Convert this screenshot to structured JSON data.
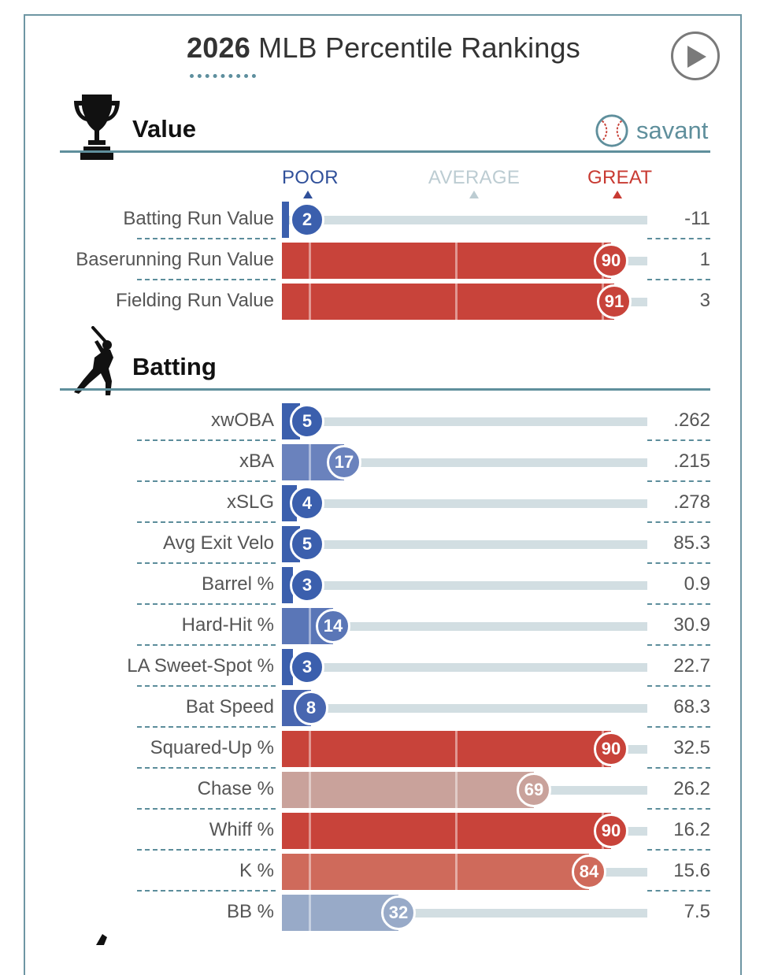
{
  "header": {
    "title_year": "2026",
    "title_rest": "MLB Percentile Rankings",
    "play_icon": "play-button-icon"
  },
  "brand": {
    "name": "savant",
    "logo_icon": "baseball-icon"
  },
  "scale_labels": {
    "poor": "POOR",
    "average": "AVERAGE",
    "great": "GREAT",
    "poor_color": "#30509a",
    "average_color": "#bcccd2",
    "great_color": "#c83a32"
  },
  "sections": [
    {
      "title": "Value",
      "icon": "trophy-icon"
    },
    {
      "title": "Batting",
      "icon": "batter-icon"
    }
  ],
  "chart_data": {
    "type": "bar",
    "orientation": "horizontal",
    "title": "2026 MLB Percentile Rankings",
    "xlim": [
      0,
      100
    ],
    "scale": [
      "POOR",
      "AVERAGE",
      "GREAT"
    ],
    "groups": [
      {
        "name": "Value",
        "metrics": [
          {
            "label": "Batting Run Value",
            "percentile": 2,
            "value": "-11",
            "color": "#3b5fad"
          },
          {
            "label": "Baserunning Run Value",
            "percentile": 90,
            "value": "1",
            "color": "#c8433a"
          },
          {
            "label": "Fielding Run Value",
            "percentile": 91,
            "value": "3",
            "color": "#c8433a"
          }
        ]
      },
      {
        "name": "Batting",
        "metrics": [
          {
            "label": "xwOBA",
            "percentile": 5,
            "value": ".262",
            "color": "#3b5fad"
          },
          {
            "label": "xBA",
            "percentile": 17,
            "value": ".215",
            "color": "#6a82bd"
          },
          {
            "label": "xSLG",
            "percentile": 4,
            "value": ".278",
            "color": "#3b5fad"
          },
          {
            "label": "Avg Exit Velo",
            "percentile": 5,
            "value": "85.3",
            "color": "#3b5fad"
          },
          {
            "label": "Barrel %",
            "percentile": 3,
            "value": "0.9",
            "color": "#3b5fad"
          },
          {
            "label": "Hard-Hit %",
            "percentile": 14,
            "value": "30.9",
            "color": "#5a76b7"
          },
          {
            "label": "LA Sweet-Spot %",
            "percentile": 3,
            "value": "22.7",
            "color": "#3b5fad"
          },
          {
            "label": "Bat Speed",
            "percentile": 8,
            "value": "68.3",
            "color": "#4866b0"
          },
          {
            "label": "Squared-Up %",
            "percentile": 90,
            "value": "32.5",
            "color": "#c8433a"
          },
          {
            "label": "Chase %",
            "percentile": 69,
            "value": "26.2",
            "color": "#c9a29b"
          },
          {
            "label": "Whiff %",
            "percentile": 90,
            "value": "16.2",
            "color": "#c8433a"
          },
          {
            "label": "K %",
            "percentile": 84,
            "value": "15.6",
            "color": "#cf6a5b"
          },
          {
            "label": "BB %",
            "percentile": 32,
            "value": "7.5",
            "color": "#98aac8"
          }
        ]
      }
    ]
  }
}
